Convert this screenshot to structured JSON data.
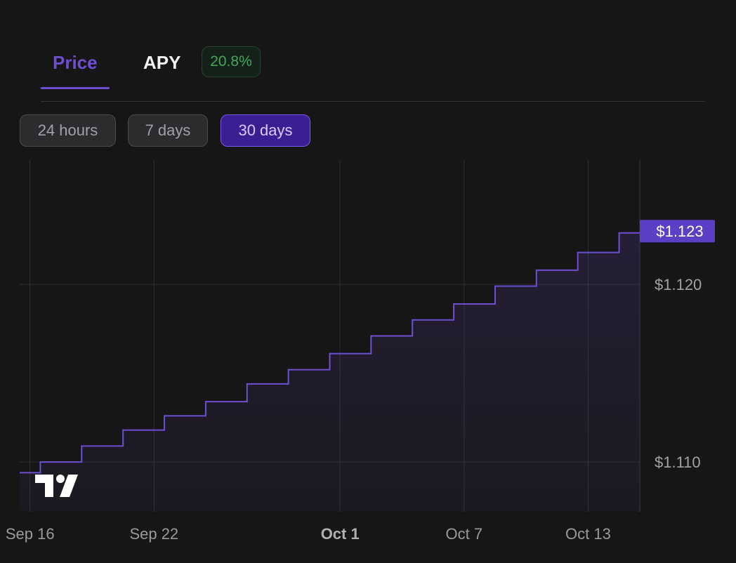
{
  "tabs": {
    "price_label": "Price",
    "apy_label": "APY",
    "apy_value": "20.8%"
  },
  "ranges": {
    "h24": "24 hours",
    "d7": "7 days",
    "d30": "30 days",
    "selected": "30 days"
  },
  "chart_data": {
    "type": "line",
    "style": "step-area",
    "x_axis": {
      "ticks": [
        "Sep 16",
        "Sep 22",
        "Oct 1",
        "Oct 7",
        "Oct 13"
      ],
      "tick_days": [
        0,
        6,
        15,
        21,
        27
      ],
      "bold_tick": "Oct 1",
      "range_days": [
        -0.5,
        29.5
      ]
    },
    "y_axis": {
      "ticks": [
        "$1.120",
        "$1.110"
      ],
      "tick_values": [
        1.12,
        1.11
      ],
      "range": [
        1.1072,
        1.127
      ]
    },
    "grid": true,
    "current_label": "$1.123",
    "current_value": 1.123,
    "series": [
      {
        "x": [
          -0.5,
          0.5,
          2.5,
          4.5,
          6.5,
          8.5,
          10.5,
          12.5,
          14.5,
          16.5,
          18.5,
          20.5,
          22.5,
          24.5,
          26.5,
          28.5,
          29.5
        ],
        "values": [
          1.1094,
          1.11,
          1.1109,
          1.1118,
          1.1126,
          1.1134,
          1.1144,
          1.1152,
          1.1161,
          1.1171,
          1.118,
          1.1189,
          1.1199,
          1.1208,
          1.1218,
          1.1229,
          1.1229
        ]
      }
    ],
    "colors": {
      "line": "#6e4fd2",
      "label_bg": "#5b3fc4",
      "grid": "#2e2e31"
    }
  }
}
